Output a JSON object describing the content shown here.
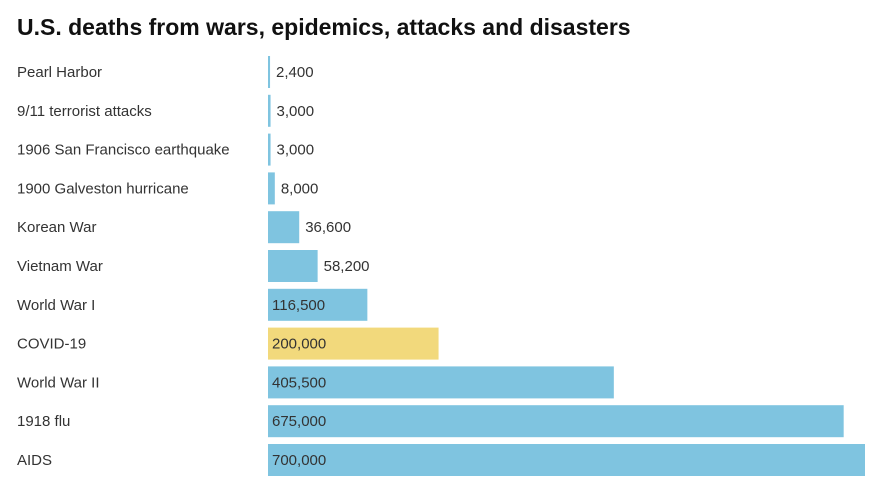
{
  "chart_data": {
    "type": "bar",
    "orientation": "horizontal",
    "title": "U.S. deaths from wars, epidemics, attacks and disasters",
    "categories": [
      "Pearl Harbor",
      "9/11 terrorist attacks",
      "1906 San Francisco earthquake",
      "1900 Galveston hurricane",
      "Korean War",
      "Vietnam War",
      "World War I",
      "COVID-19",
      "World War II",
      "1918 flu",
      "AIDS"
    ],
    "values": [
      2400,
      3000,
      3000,
      8000,
      36600,
      58200,
      116500,
      200000,
      405500,
      675000,
      700000
    ],
    "value_labels": [
      "2,400",
      "3,000",
      "3,000",
      "8,000",
      "36,600",
      "58,200",
      "116,500",
      "200,000",
      "405,500",
      "675,000",
      "700,000"
    ],
    "highlight_category": "COVID-19",
    "xlim": [
      0,
      700000
    ],
    "grid": false,
    "legend": "none",
    "colors": {
      "bar": "#7fc4e0",
      "highlight": "#f2d97c",
      "text": "#333333"
    }
  }
}
